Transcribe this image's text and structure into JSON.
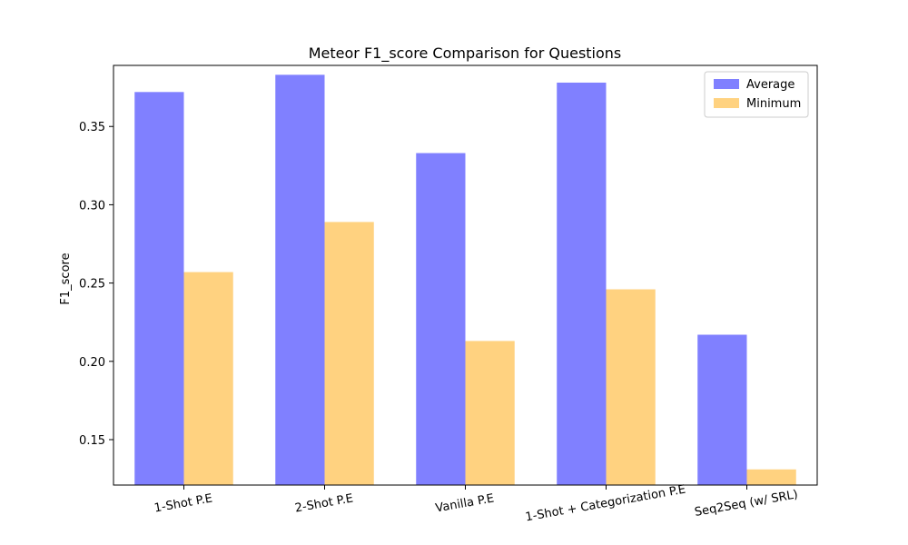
{
  "chart_data": {
    "type": "bar",
    "title": "Meteor F1_score Comparison for Questions",
    "xlabel": "",
    "ylabel": "F1_score",
    "categories": [
      "1-Shot P.E",
      "2-Shot P.E",
      "Vanilla P.E",
      "1-Shot + Categorization P.E",
      "Seq2Seq (w/ SRL)"
    ],
    "series": [
      {
        "name": "Average",
        "values": [
          0.372,
          0.383,
          0.333,
          0.378,
          0.217
        ],
        "color": "#8080ff"
      },
      {
        "name": "Minimum",
        "values": [
          0.257,
          0.289,
          0.213,
          0.246,
          0.131
        ],
        "color": "#ffd280"
      }
    ],
    "ylim": [
      0.121,
      0.389
    ],
    "yticks": [
      0.15,
      0.2,
      0.25,
      0.3,
      0.35
    ],
    "ytick_labels": [
      "0.15",
      "0.20",
      "0.25",
      "0.30",
      "0.35"
    ],
    "grid": false,
    "legend_position": "top-right"
  }
}
